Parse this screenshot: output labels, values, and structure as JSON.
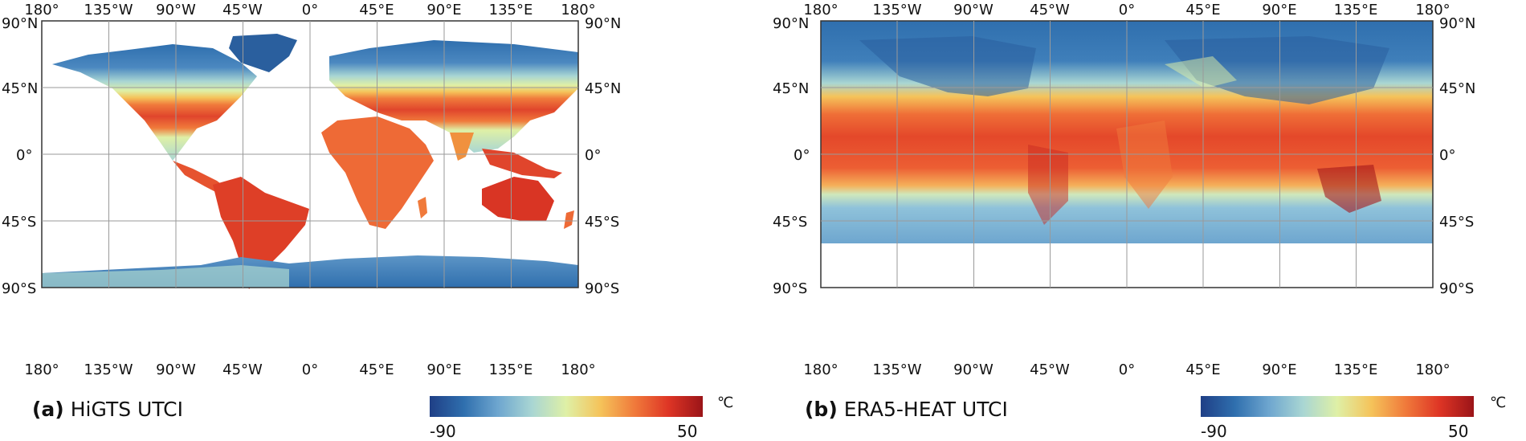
{
  "axes": {
    "lon_labels": [
      "180°",
      "135°W",
      "90°W",
      "45°W",
      "0°",
      "45°E",
      "90°E",
      "135°E",
      "180°"
    ],
    "lat_labels": [
      "90°N",
      "45°N",
      "0°",
      "45°S",
      "90°S"
    ]
  },
  "colormap": {
    "stops": [
      "#1f3f86",
      "#2f6fae",
      "#6ea6cf",
      "#a9d6d3",
      "#dff0a6",
      "#f5c35a",
      "#f07a3b",
      "#de3525",
      "#9a1418"
    ],
    "min_label": "-90",
    "max_label": "50",
    "unit": "℃"
  },
  "panels": [
    {
      "letter": "(a)",
      "title": "HiGTS UTCI"
    },
    {
      "letter": "(b)",
      "title": "ERA5-HEAT UTCI"
    }
  ]
}
